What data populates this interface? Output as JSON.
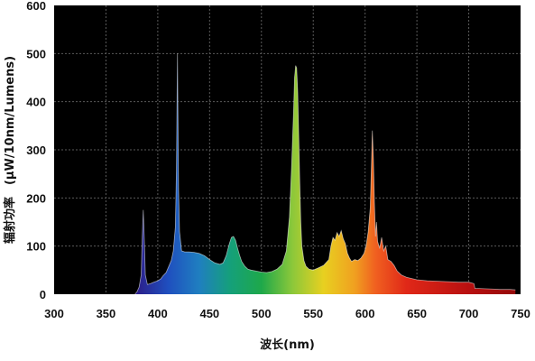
{
  "chart_data": {
    "type": "area",
    "xlabel": "波长(nm)",
    "ylabel": "辐射功率　(μW/10nm/Lumens)",
    "xlim": [
      300,
      750
    ],
    "ylim": [
      0,
      600
    ],
    "xticks": [
      300,
      350,
      400,
      450,
      500,
      550,
      600,
      650,
      700,
      750
    ],
    "yticks": [
      0,
      100,
      200,
      300,
      400,
      500,
      600
    ],
    "grid": true,
    "plot_background": "#000000",
    "grid_color": "#5a5a5a",
    "color_stops": [
      {
        "x": 380,
        "color": "#2c1f8a"
      },
      {
        "x": 410,
        "color": "#1f4fbf"
      },
      {
        "x": 440,
        "color": "#1f7fc0"
      },
      {
        "x": 470,
        "color": "#15a07a"
      },
      {
        "x": 500,
        "color": "#1ea84a"
      },
      {
        "x": 530,
        "color": "#8cc83a"
      },
      {
        "x": 560,
        "color": "#e8d020"
      },
      {
        "x": 590,
        "color": "#f0a020"
      },
      {
        "x": 610,
        "color": "#f06020"
      },
      {
        "x": 640,
        "color": "#e02818"
      },
      {
        "x": 700,
        "color": "#b81010"
      },
      {
        "x": 750,
        "color": "#900808"
      }
    ],
    "series": [
      {
        "x": [
          378,
          380,
          382,
          384,
          385,
          386,
          387,
          388,
          390,
          393,
          396,
          400,
          403,
          405,
          408,
          410,
          413,
          415,
          417,
          418,
          419,
          420,
          421,
          423,
          426,
          430,
          435,
          440,
          445,
          450,
          455,
          460,
          463,
          466,
          469,
          471,
          473,
          475,
          477,
          479,
          481,
          484,
          487,
          490,
          495,
          500,
          505,
          510,
          515,
          520,
          524,
          527,
          529,
          531,
          532,
          533,
          534,
          535,
          536,
          537,
          538,
          539,
          541,
          543,
          546,
          550,
          555,
          560,
          565,
          567,
          569,
          571,
          573,
          575,
          577,
          579,
          581,
          583,
          585,
          587,
          590,
          593,
          596,
          599,
          601,
          603,
          605,
          606,
          607,
          608,
          609,
          610,
          611,
          612,
          614,
          616,
          618,
          620,
          622,
          625,
          628,
          631,
          635,
          640,
          650,
          660,
          670,
          680,
          690,
          700,
          705,
          706,
          710,
          720,
          730,
          740,
          745
        ],
        "y": [
          0,
          5,
          15,
          40,
          120,
          175,
          110,
          40,
          20,
          22,
          25,
          28,
          32,
          38,
          45,
          55,
          70,
          90,
          140,
          260,
          500,
          220,
          130,
          90,
          88,
          88,
          87,
          85,
          80,
          72,
          65,
          62,
          65,
          80,
          105,
          118,
          120,
          112,
          95,
          80,
          68,
          58,
          52,
          50,
          48,
          46,
          45,
          47,
          52,
          62,
          90,
          160,
          260,
          380,
          450,
          475,
          470,
          420,
          330,
          230,
          150,
          100,
          70,
          58,
          52,
          50,
          55,
          60,
          72,
          100,
          118,
          112,
          128,
          120,
          132,
          115,
          105,
          85,
          75,
          68,
          72,
          70,
          75,
          85,
          100,
          130,
          180,
          260,
          340,
          280,
          190,
          120,
          150,
          110,
          95,
          118,
          90,
          100,
          72,
          68,
          60,
          48,
          40,
          35,
          30,
          28,
          27,
          26,
          25,
          25,
          22,
          12,
          12,
          11,
          10,
          10,
          9
        ]
      }
    ]
  }
}
